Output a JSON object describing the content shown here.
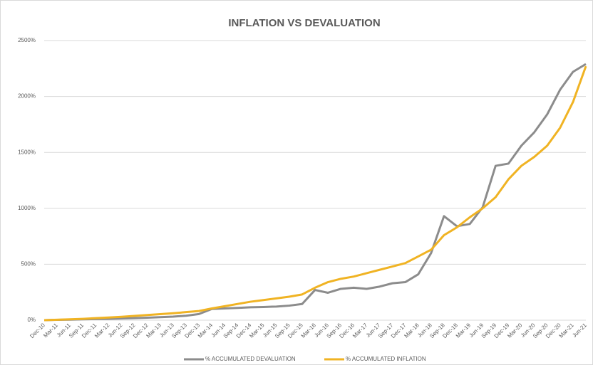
{
  "chart_data": {
    "type": "line",
    "title": "INFLATION VS DEVALUATION",
    "categories": [
      "Dec-10",
      "Mar-11",
      "Jun-11",
      "Sep-11",
      "Dec-11",
      "Mar-12",
      "Jun-12",
      "Sep-12",
      "Dec-12",
      "Mar-13",
      "Jun-13",
      "Sep-13",
      "Dec-13",
      "Mar-14",
      "Jun-14",
      "Sep-14",
      "Dec-14",
      "Mar-15",
      "Jun-15",
      "Sep-15",
      "Dec-15",
      "Mar-16",
      "Jun-16",
      "Sep-16",
      "Dec-16",
      "Mar-17",
      "Jun-17",
      "Sep-17",
      "Dec-17",
      "Mar-18",
      "Jun-18",
      "Sep-18",
      "Dec-18",
      "Mar-19",
      "Jun-19",
      "Sep-19",
      "Dec-19",
      "Mar-20",
      "Jun-20",
      "Sep-20",
      "Dec-20",
      "Mar-21",
      "Jun-21"
    ],
    "series": [
      {
        "name": "% ACCUMULATED DEVALUATION",
        "color": "#8c8c8c",
        "values": [
          0,
          3,
          5,
          8,
          10,
          12,
          15,
          18,
          22,
          27,
          32,
          40,
          55,
          100,
          105,
          110,
          115,
          118,
          122,
          130,
          145,
          270,
          245,
          280,
          290,
          280,
          300,
          330,
          340,
          410,
          600,
          930,
          840,
          860,
          1010,
          1380,
          1400,
          1560,
          1680,
          1840,
          2060,
          2220,
          2290
        ]
      },
      {
        "name": "% ACCUMULATED INFLATION",
        "color": "#f0b323",
        "values": [
          0,
          4,
          8,
          12,
          18,
          24,
          30,
          38,
          46,
          54,
          62,
          72,
          82,
          105,
          125,
          145,
          165,
          180,
          195,
          210,
          230,
          290,
          340,
          370,
          390,
          420,
          450,
          480,
          510,
          570,
          630,
          760,
          830,
          920,
          1000,
          1100,
          1260,
          1380,
          1460,
          1560,
          1720,
          1950,
          2270
        ]
      }
    ],
    "ylim": [
      0,
      2500
    ],
    "yticks": [
      {
        "value": 0,
        "label": "0%"
      },
      {
        "value": 500,
        "label": "500%"
      },
      {
        "value": 1000,
        "label": "1000%"
      },
      {
        "value": 1500,
        "label": "1500%"
      },
      {
        "value": 2000,
        "label": "2000%"
      },
      {
        "value": 2500,
        "label": "2500%"
      }
    ],
    "grid": true
  }
}
